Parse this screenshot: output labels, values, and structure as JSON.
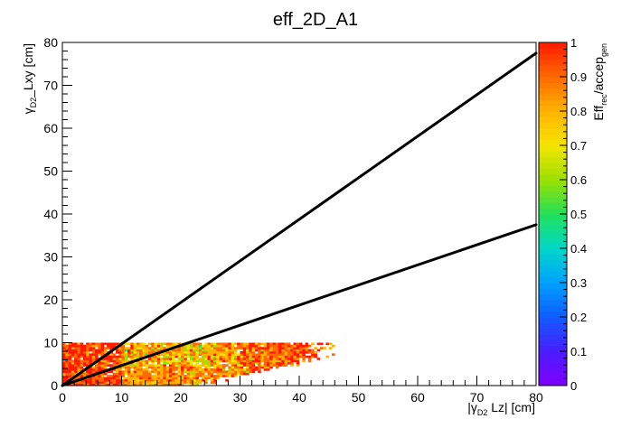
{
  "chart_data": {
    "type": "heatmap",
    "title": "eff_2D_A1",
    "xlabel": {
      "pre": "|γ",
      "sub": "D2",
      "post": " Lz| [cm]"
    },
    "ylabel": {
      "pre": "γ",
      "sub": "D2",
      "post": "_Lxy [cm]"
    },
    "zlabel": {
      "pre": "Eff",
      "sub1": "rec",
      "mid": "/accep",
      "sub2": "gen"
    },
    "xlim": [
      0,
      80
    ],
    "ylim": [
      0,
      80
    ],
    "zlim": [
      0,
      1
    ],
    "x_ticks": [
      "0",
      "10",
      "20",
      "30",
      "40",
      "50",
      "60",
      "70",
      "80"
    ],
    "y_ticks": [
      "0",
      "10",
      "20",
      "30",
      "40",
      "50",
      "60",
      "70",
      "80"
    ],
    "z_ticks": [
      "0",
      "0.1",
      "0.2",
      "0.3",
      "0.4",
      "0.5",
      "0.6",
      "0.7",
      "0.8",
      "0.9",
      "1"
    ],
    "palette": [
      "#8000ff",
      "#4b1cff",
      "#0f5bff",
      "#00a0ff",
      "#00d7c8",
      "#22e05a",
      "#9be000",
      "#f5e400",
      "#ffb300",
      "#ff6a00",
      "#ff1a00"
    ],
    "bin_size": [
      0.5,
      0.5
    ],
    "efficiency_region": {
      "x_range": [
        0,
        46
      ],
      "y_range": [
        0,
        10
      ],
      "bands": [
        {
          "x_range": [
            0,
            10
          ],
          "typical_efficiency": 0.95
        },
        {
          "x_range": [
            10,
            30
          ],
          "typical_efficiency": 0.85
        },
        {
          "x_range": [
            30,
            46
          ],
          "typical_efficiency": 0.92
        }
      ]
    },
    "boundary_lines": [
      {
        "x": [
          0,
          80
        ],
        "y": [
          0,
          77.5
        ]
      },
      {
        "x": [
          0,
          80
        ],
        "y": [
          0,
          37.5
        ]
      }
    ],
    "frame_color": "#000000",
    "background": "#ffffff"
  }
}
